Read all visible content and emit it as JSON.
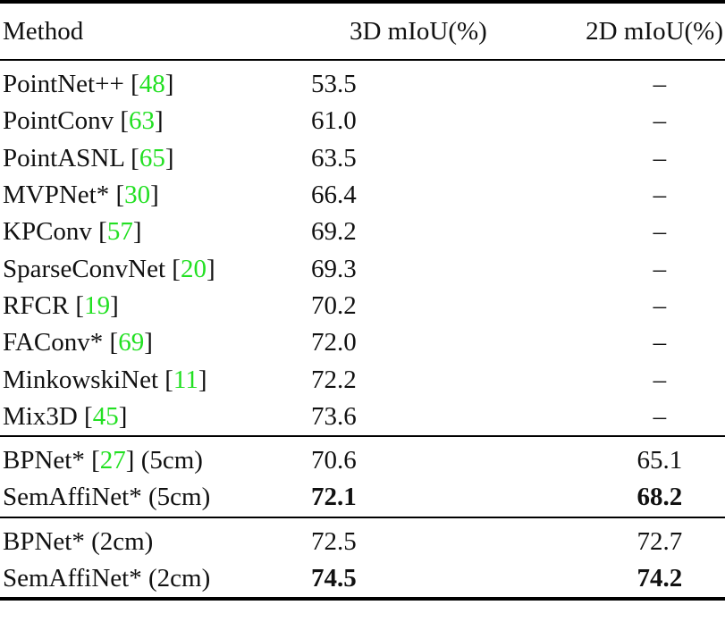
{
  "table": {
    "columns": [
      "Method",
      "3D mIoU(%)",
      "2D mIoU(%)"
    ],
    "groups": [
      {
        "rows": [
          {
            "method": "PointNet++",
            "cite": "48",
            "suffix": "",
            "mIoU3d": "53.5",
            "mIoU2d": "–",
            "bold3d": false,
            "bold2d": false
          },
          {
            "method": "PointConv",
            "cite": "63",
            "suffix": "",
            "mIoU3d": "61.0",
            "mIoU2d": "–",
            "bold3d": false,
            "bold2d": false
          },
          {
            "method": "PointASNL",
            "cite": "65",
            "suffix": "",
            "mIoU3d": "63.5",
            "mIoU2d": "–",
            "bold3d": false,
            "bold2d": false
          },
          {
            "method": "MVPNet*",
            "cite": "30",
            "suffix": "",
            "mIoU3d": "66.4",
            "mIoU2d": "–",
            "bold3d": false,
            "bold2d": false
          },
          {
            "method": "KPConv",
            "cite": "57",
            "suffix": "",
            "mIoU3d": "69.2",
            "mIoU2d": "–",
            "bold3d": false,
            "bold2d": false
          },
          {
            "method": "SparseConvNet",
            "cite": "20",
            "suffix": "",
            "mIoU3d": "69.3",
            "mIoU2d": "–",
            "bold3d": false,
            "bold2d": false
          },
          {
            "method": "RFCR",
            "cite": "19",
            "suffix": "",
            "mIoU3d": "70.2",
            "mIoU2d": "–",
            "bold3d": false,
            "bold2d": false
          },
          {
            "method": "FAConv*",
            "cite": "69",
            "suffix": "",
            "mIoU3d": "72.0",
            "mIoU2d": "–",
            "bold3d": false,
            "bold2d": false
          },
          {
            "method": "MinkowskiNet",
            "cite": "11",
            "suffix": "",
            "mIoU3d": "72.2",
            "mIoU2d": "–",
            "bold3d": false,
            "bold2d": false
          },
          {
            "method": "Mix3D",
            "cite": "45",
            "suffix": "",
            "mIoU3d": "73.6",
            "mIoU2d": "–",
            "bold3d": false,
            "bold2d": false
          }
        ]
      },
      {
        "rows": [
          {
            "method": "BPNet*",
            "cite": "27",
            "suffix": "(5cm)",
            "mIoU3d": "70.6",
            "mIoU2d": "65.1",
            "bold3d": false,
            "bold2d": false
          },
          {
            "method": "SemAffiNet*",
            "cite": "",
            "suffix": "(5cm)",
            "mIoU3d": "72.1",
            "mIoU2d": "68.2",
            "bold3d": true,
            "bold2d": true
          }
        ]
      },
      {
        "rows": [
          {
            "method": "BPNet*",
            "cite": "",
            "suffix": "(2cm)",
            "mIoU3d": "72.5",
            "mIoU2d": "72.7",
            "bold3d": false,
            "bold2d": false
          },
          {
            "method": "SemAffiNet*",
            "cite": "",
            "suffix": "(2cm)",
            "mIoU3d": "74.5",
            "mIoU2d": "74.2",
            "bold3d": true,
            "bold2d": true
          }
        ]
      }
    ],
    "colors": {
      "citation": "#22e022",
      "text": "#111111",
      "rule": "#000000"
    }
  }
}
